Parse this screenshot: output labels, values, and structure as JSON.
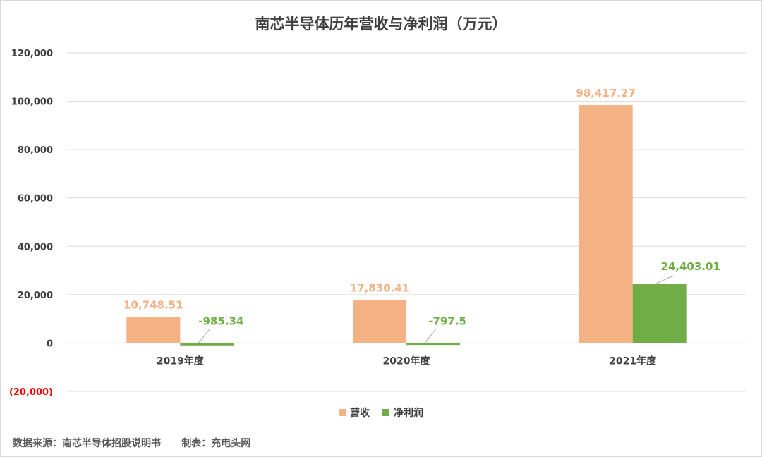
{
  "chart_data": {
    "type": "bar",
    "title": "南芯半导体历年营收与净利润（万元）",
    "categories": [
      "2019年度",
      "2020年度",
      "2021年度"
    ],
    "series": [
      {
        "name": "营收",
        "color": "#F4B183",
        "values": [
          10748.51,
          17830.41,
          98417.27
        ],
        "labels": [
          "10,748.51",
          "17,830.41",
          "98,417.27"
        ]
      },
      {
        "name": "净利润",
        "color": "#70AD47",
        "values": [
          -985.34,
          -797.5,
          24403.01
        ],
        "labels": [
          "-985.34",
          "-797.5",
          "24,403.01"
        ]
      }
    ],
    "ylim": [
      -20000,
      120000
    ],
    "yticks": [
      120000,
      100000,
      80000,
      60000,
      40000,
      20000,
      0,
      -20000
    ],
    "ytick_labels": [
      "120,000",
      "100,000",
      "80,000",
      "60,000",
      "40,000",
      "20,000",
      "0",
      "(20,000)"
    ],
    "negative_tick_color": "#FF0000",
    "grid": true,
    "legend": "bottom"
  },
  "footer": {
    "source": "数据来源：南芯半导体招股说明书",
    "credit": "制表：充电头网"
  }
}
